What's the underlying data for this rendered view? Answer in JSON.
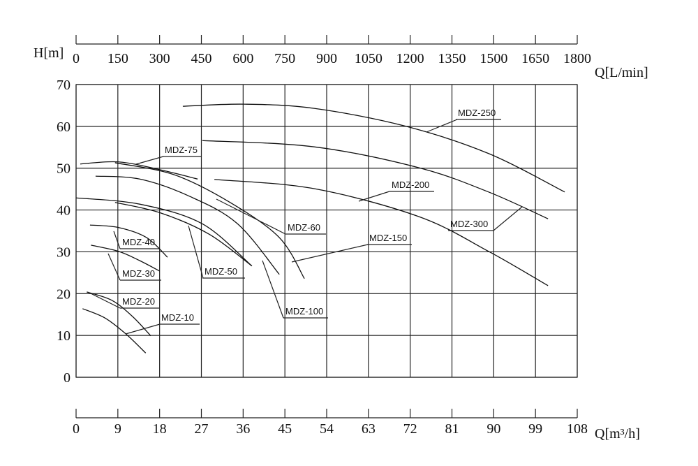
{
  "chart_data": {
    "type": "line",
    "y_label": "H[m]",
    "x_label": "Q[m³/h]",
    "x2_label": "Q[L/min]",
    "xlim": [
      0,
      108
    ],
    "xticks": [
      0,
      9,
      18,
      27,
      36,
      45,
      54,
      63,
      72,
      81,
      90,
      99,
      108
    ],
    "x2lim": [
      0,
      1800
    ],
    "x2ticks": [
      0,
      150,
      300,
      450,
      600,
      750,
      900,
      1050,
      1200,
      1350,
      1500,
      1650,
      1800
    ],
    "ylim": [
      0,
      70
    ],
    "yticks": [
      0,
      10,
      20,
      30,
      40,
      50,
      60,
      70
    ],
    "grid": true,
    "color": "#111111",
    "series": [
      {
        "name": "MDZ-250",
        "x": [
          23.0,
          36.3,
          51.3,
          70.8,
          88.9,
          105.3
        ],
        "values": [
          64.8,
          65.3,
          64.3,
          60.1,
          53.5,
          44.3
        ]
      },
      {
        "name": "MDZ-300",
        "x": [
          27.2,
          51.3,
          73.9,
          88.9,
          101.7
        ],
        "values": [
          56.6,
          55.1,
          50.1,
          44.3,
          37.9
        ]
      },
      {
        "name": "MDZ-200",
        "x": [
          29.8,
          51.3,
          73.9,
          88.9,
          101.7
        ],
        "values": [
          47.3,
          45.1,
          38.4,
          30.1,
          21.9
        ]
      },
      {
        "name": "MDZ-150",
        "x": [
          8.4,
          21.2,
          33.2,
          43.8,
          49.2
        ],
        "values": [
          51.3,
          48.4,
          41.8,
          33.4,
          23.6
        ]
      },
      {
        "name": "MDZ-60",
        "x": [
          4.2,
          13.7,
          24.2,
          34.7,
          43.8
        ],
        "values": [
          48.1,
          47.4,
          43.4,
          36.8,
          24.6
        ]
      },
      {
        "name": "MDZ-75",
        "x": [
          0.9,
          9.2,
          18.2,
          26.2
        ],
        "values": [
          51.0,
          51.5,
          49.6,
          47.4
        ]
      },
      {
        "name": "MDZ-100",
        "x": [
          0,
          13.7,
          27.2,
          37.8
        ],
        "values": [
          42.9,
          41.4,
          36.7,
          26.7
        ]
      },
      {
        "name": "MDZ-50",
        "x": [
          8.4,
          18.2,
          28.7,
          37.9
        ],
        "values": [
          41.8,
          39.3,
          34.2,
          26.6
        ]
      },
      {
        "name": "MDZ-40",
        "x": [
          3.0,
          9.2,
          15.2,
          19.7
        ],
        "values": [
          36.4,
          35.8,
          33.4,
          28.7
        ]
      },
      {
        "name": "MDZ-30",
        "x": [
          3.2,
          9.2,
          13.7,
          18.0
        ],
        "values": [
          31.6,
          30.1,
          27.9,
          25.4
        ]
      },
      {
        "name": "MDZ-20",
        "x": [
          2.3,
          7.7,
          12.2,
          16.1
        ],
        "values": [
          20.4,
          18.4,
          14.5,
          9.9
        ]
      },
      {
        "name": "MDZ-10",
        "x": [
          1.4,
          6.2,
          10.7,
          15.0
        ],
        "values": [
          16.4,
          14.2,
          10.4,
          5.8
        ]
      }
    ]
  }
}
